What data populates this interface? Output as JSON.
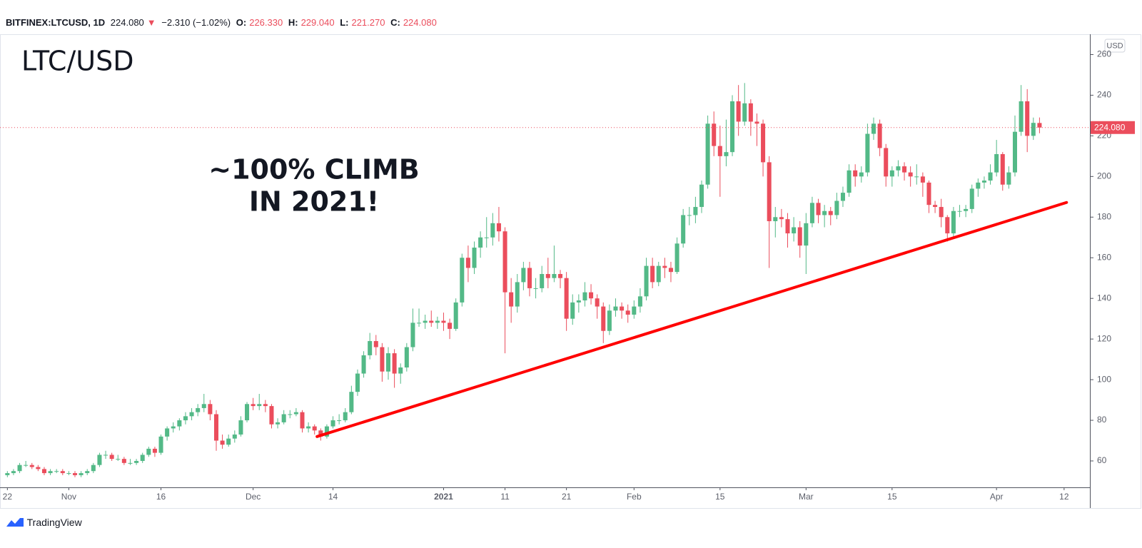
{
  "header": {
    "symbol": "BITFINEX:LTCUSD, 1D",
    "last": "224.080",
    "change": "−2.310 (−1.02%)",
    "fields": [
      {
        "label": "O:",
        "value": "226.330"
      },
      {
        "label": "H:",
        "value": "229.040"
      },
      {
        "label": "L:",
        "value": "221.270"
      },
      {
        "label": "C:",
        "value": "224.080"
      }
    ]
  },
  "footer": "TradingView",
  "chart_data": {
    "type": "candlestick",
    "title": "LTC/USD",
    "annotation": [
      "~100% CLIMB",
      "IN 2021!"
    ],
    "unit": "USD",
    "up_color": "#53b987",
    "down_color": "#eb4d5c",
    "xlim": [
      -1.2,
      176.2
    ],
    "ylim": [
      47,
      270
    ],
    "yticks": [
      60,
      80,
      100,
      120,
      140,
      160,
      180,
      200,
      220,
      240,
      260
    ],
    "xticks": [
      {
        "value": 0,
        "label": "22"
      },
      {
        "value": 10,
        "label": "Nov"
      },
      {
        "value": 25,
        "label": "16"
      },
      {
        "value": 40,
        "label": "Dec"
      },
      {
        "value": 53,
        "label": "14"
      },
      {
        "value": 71,
        "label": "2021"
      },
      {
        "value": 81,
        "label": "11"
      },
      {
        "value": 91,
        "label": "21"
      },
      {
        "value": 102,
        "label": "Feb"
      },
      {
        "value": 116,
        "label": "15"
      },
      {
        "value": 130,
        "label": "Mar"
      },
      {
        "value": 144,
        "label": "15"
      },
      {
        "value": 161,
        "label": "Apr"
      },
      {
        "value": 172,
        "label": "12"
      }
    ],
    "bold_xtick": 5,
    "last_price_label": "224.080",
    "trendline": {
      "x": [
        50.4,
        172.4
      ],
      "y": [
        72,
        187.2
      ],
      "color": "#ff0000"
    },
    "x": [
      0,
      1,
      2,
      3,
      4,
      5,
      6,
      7,
      8,
      9,
      10,
      11,
      12,
      13,
      14,
      15,
      16,
      17,
      18,
      19,
      20,
      21,
      22,
      23,
      24,
      25,
      26,
      27,
      28,
      29,
      30,
      31,
      32,
      33,
      34,
      35,
      36,
      37,
      38,
      39,
      40,
      41,
      42,
      43,
      44,
      45,
      46,
      47,
      48,
      49,
      50,
      51,
      52,
      53,
      54,
      55,
      56,
      57,
      58,
      59,
      60,
      61,
      62,
      63,
      64,
      65,
      66,
      67,
      68,
      69,
      70,
      71,
      72,
      73,
      74,
      75,
      76,
      77,
      78,
      79,
      80,
      81,
      82,
      83,
      84,
      85,
      86,
      87,
      88,
      89,
      90,
      91,
      92,
      93,
      94,
      95,
      96,
      97,
      98,
      99,
      100,
      101,
      102,
      103,
      104,
      105,
      106,
      107,
      108,
      109,
      110,
      111,
      112,
      113,
      114,
      115,
      116,
      117,
      118,
      119,
      120,
      121,
      122,
      123,
      124,
      125,
      126,
      127,
      128,
      129,
      130,
      131,
      132,
      133,
      134,
      135,
      136,
      137,
      138,
      139,
      140,
      141,
      142,
      143,
      144,
      145,
      146,
      147,
      148,
      149,
      150,
      151,
      152,
      153,
      154,
      155,
      156,
      157,
      158,
      159,
      160,
      161,
      162,
      163,
      164,
      165,
      166,
      167,
      168
    ],
    "ohlc": [
      [
        53,
        55,
        52,
        54
      ],
      [
        54,
        56,
        53,
        55
      ],
      [
        55,
        59,
        54,
        58
      ],
      [
        58,
        60,
        57,
        58
      ],
      [
        58,
        59,
        56,
        57
      ],
      [
        57,
        58,
        55,
        56
      ],
      [
        56,
        57,
        53,
        54
      ],
      [
        54,
        56,
        53,
        55
      ],
      [
        55,
        56,
        54,
        55
      ],
      [
        55,
        56,
        53,
        54
      ],
      [
        54,
        55,
        53,
        54
      ],
      [
        54,
        55,
        52,
        53
      ],
      [
        53,
        55,
        52,
        54
      ],
      [
        54,
        56,
        53,
        55
      ],
      [
        55,
        59,
        54,
        58
      ],
      [
        58,
        64,
        57,
        63
      ],
      [
        63,
        65,
        61,
        63
      ],
      [
        63,
        64,
        60,
        61
      ],
      [
        61,
        63,
        60,
        61
      ],
      [
        61,
        62,
        58,
        59
      ],
      [
        59,
        61,
        58,
        59
      ],
      [
        59,
        61,
        58,
        60
      ],
      [
        60,
        64,
        59,
        63
      ],
      [
        63,
        67,
        62,
        66
      ],
      [
        66,
        67,
        62,
        64
      ],
      [
        64,
        73,
        63,
        72
      ],
      [
        72,
        77,
        70,
        76
      ],
      [
        76,
        79,
        74,
        77
      ],
      [
        77,
        81,
        75,
        80
      ],
      [
        80,
        84,
        78,
        82
      ],
      [
        82,
        86,
        80,
        84
      ],
      [
        84,
        88,
        82,
        86
      ],
      [
        86,
        93,
        84,
        88
      ],
      [
        88,
        90,
        80,
        83
      ],
      [
        83,
        85,
        65,
        70
      ],
      [
        70,
        73,
        66,
        68
      ],
      [
        68,
        73,
        67,
        71
      ],
      [
        71,
        75,
        69,
        73
      ],
      [
        73,
        82,
        72,
        80
      ],
      [
        80,
        89,
        79,
        88
      ],
      [
        88,
        91,
        85,
        87
      ],
      [
        87,
        93,
        85,
        88
      ],
      [
        88,
        90,
        84,
        87
      ],
      [
        87,
        88,
        76,
        78
      ],
      [
        78,
        81,
        76,
        79
      ],
      [
        79,
        85,
        78,
        83
      ],
      [
        83,
        85,
        81,
        83
      ],
      [
        83,
        86,
        82,
        84
      ],
      [
        84,
        85,
        74,
        76
      ],
      [
        76,
        79,
        74,
        77
      ],
      [
        77,
        78,
        73,
        75
      ],
      [
        75,
        76,
        70,
        72
      ],
      [
        72,
        78,
        71,
        77
      ],
      [
        77,
        82,
        76,
        80
      ],
      [
        80,
        83,
        78,
        80
      ],
      [
        80,
        86,
        79,
        84
      ],
      [
        84,
        97,
        83,
        94
      ],
      [
        94,
        105,
        92,
        103
      ],
      [
        103,
        114,
        101,
        112
      ],
      [
        112,
        123,
        110,
        119
      ],
      [
        119,
        122,
        112,
        116
      ],
      [
        116,
        118,
        99,
        104
      ],
      [
        104,
        116,
        100,
        113
      ],
      [
        113,
        115,
        96,
        103
      ],
      [
        103,
        108,
        98,
        106
      ],
      [
        106,
        118,
        104,
        116
      ],
      [
        116,
        135,
        114,
        128
      ],
      [
        128,
        135,
        126,
        128
      ],
      [
        128,
        132,
        125,
        129
      ],
      [
        129,
        134,
        126,
        128
      ],
      [
        128,
        131,
        125,
        129
      ],
      [
        129,
        133,
        124,
        128
      ],
      [
        128,
        130,
        120,
        125
      ],
      [
        125,
        140,
        124,
        138
      ],
      [
        138,
        162,
        136,
        160
      ],
      [
        160,
        166,
        148,
        155
      ],
      [
        155,
        168,
        152,
        165
      ],
      [
        165,
        173,
        160,
        170
      ],
      [
        170,
        180,
        165,
        170
      ],
      [
        170,
        182,
        166,
        177
      ],
      [
        177,
        185,
        168,
        173
      ],
      [
        173,
        175,
        113,
        143
      ],
      [
        143,
        150,
        128,
        136
      ],
      [
        136,
        152,
        133,
        148
      ],
      [
        148,
        158,
        144,
        155
      ],
      [
        155,
        158,
        141,
        145
      ],
      [
        145,
        150,
        140,
        145
      ],
      [
        145,
        156,
        143,
        152
      ],
      [
        152,
        160,
        145,
        150
      ],
      [
        150,
        166,
        148,
        152
      ],
      [
        152,
        154,
        145,
        150
      ],
      [
        150,
        153,
        124,
        130
      ],
      [
        130,
        142,
        127,
        138
      ],
      [
        138,
        142,
        133,
        139
      ],
      [
        139,
        148,
        136,
        143
      ],
      [
        143,
        147,
        137,
        140
      ],
      [
        140,
        142,
        130,
        136
      ],
      [
        136,
        138,
        118,
        124
      ],
      [
        124,
        137,
        122,
        134
      ],
      [
        134,
        140,
        131,
        136
      ],
      [
        136,
        138,
        130,
        134
      ],
      [
        134,
        137,
        128,
        132
      ],
      [
        132,
        139,
        130,
        136
      ],
      [
        136,
        145,
        133,
        141
      ],
      [
        141,
        160,
        139,
        156
      ],
      [
        156,
        160,
        145,
        148
      ],
      [
        148,
        158,
        146,
        156
      ],
      [
        156,
        160,
        150,
        155
      ],
      [
        155,
        158,
        148,
        153
      ],
      [
        153,
        170,
        152,
        167
      ],
      [
        167,
        184,
        165,
        181
      ],
      [
        181,
        185,
        176,
        181
      ],
      [
        181,
        190,
        177,
        185
      ],
      [
        185,
        198,
        182,
        196
      ],
      [
        196,
        230,
        194,
        226
      ],
      [
        226,
        232,
        210,
        215
      ],
      [
        215,
        225,
        190,
        210
      ],
      [
        210,
        228,
        205,
        212
      ],
      [
        212,
        240,
        210,
        237
      ],
      [
        237,
        245,
        220,
        227
      ],
      [
        227,
        246,
        225,
        236
      ],
      [
        236,
        238,
        220,
        227
      ],
      [
        227,
        231,
        215,
        226
      ],
      [
        226,
        228,
        200,
        207
      ],
      [
        207,
        210,
        155,
        178
      ],
      [
        178,
        185,
        170,
        180
      ],
      [
        180,
        184,
        175,
        179
      ],
      [
        179,
        182,
        165,
        172
      ],
      [
        172,
        180,
        168,
        175
      ],
      [
        175,
        178,
        160,
        166
      ],
      [
        166,
        182,
        152,
        177
      ],
      [
        177,
        190,
        175,
        187
      ],
      [
        187,
        189,
        177,
        181
      ],
      [
        181,
        186,
        175,
        183
      ],
      [
        183,
        185,
        176,
        181
      ],
      [
        181,
        192,
        179,
        188
      ],
      [
        188,
        195,
        185,
        192
      ],
      [
        192,
        206,
        190,
        203
      ],
      [
        203,
        206,
        195,
        200
      ],
      [
        200,
        205,
        197,
        202
      ],
      [
        202,
        226,
        200,
        221
      ],
      [
        221,
        229,
        218,
        226
      ],
      [
        226,
        228,
        210,
        214
      ],
      [
        214,
        216,
        195,
        200
      ],
      [
        200,
        205,
        195,
        203
      ],
      [
        203,
        208,
        200,
        205
      ],
      [
        205,
        207,
        198,
        202
      ],
      [
        202,
        205,
        195,
        200
      ],
      [
        200,
        206,
        196,
        200
      ],
      [
        200,
        202,
        190,
        197
      ],
      [
        197,
        198,
        182,
        186
      ],
      [
        186,
        188,
        182,
        185
      ],
      [
        185,
        189,
        175,
        180
      ],
      [
        180,
        181,
        168,
        172
      ],
      [
        172,
        185,
        170,
        183
      ],
      [
        183,
        186,
        180,
        183
      ],
      [
        183,
        186,
        180,
        184
      ],
      [
        184,
        196,
        182,
        194
      ],
      [
        194,
        199,
        190,
        197
      ],
      [
        197,
        200,
        194,
        198
      ],
      [
        198,
        206,
        196,
        202
      ],
      [
        202,
        218,
        200,
        211
      ],
      [
        211,
        212,
        193,
        196
      ],
      [
        196,
        205,
        194,
        202
      ],
      [
        202,
        230,
        200,
        222
      ],
      [
        222,
        245,
        220,
        237
      ],
      [
        237,
        243,
        212,
        220
      ],
      [
        220,
        229,
        218,
        226.39
      ],
      [
        226.33,
        229.04,
        221.27,
        224.08
      ]
    ]
  }
}
